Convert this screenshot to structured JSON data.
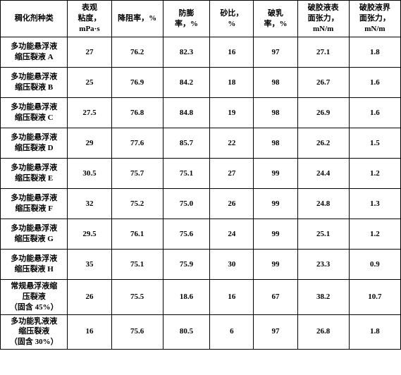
{
  "table": {
    "columns": [
      "稠化剂种类",
      "表观\n粘度，\nmPa·s",
      "降阻率，%",
      "防膨\n率，%",
      "砂比，\n%",
      "破乳\n率，%",
      "破胶液表\n面张力，\nmN/m",
      "破胶液界\n面张力，\nmN/m"
    ],
    "rows": [
      [
        "多功能悬浮液\n缩压裂液 A",
        "27",
        "76.2",
        "82.3",
        "16",
        "97",
        "27.1",
        "1.8"
      ],
      [
        "多功能悬浮液\n缩压裂液 B",
        "25",
        "76.9",
        "84.2",
        "18",
        "98",
        "26.7",
        "1.6"
      ],
      [
        "多功能悬浮液\n缩压裂液 C",
        "27.5",
        "76.8",
        "84.8",
        "19",
        "98",
        "26.9",
        "1.6"
      ],
      [
        "多功能悬浮液\n缩压裂液 D",
        "29",
        "77.6",
        "85.7",
        "22",
        "98",
        "26.2",
        "1.5"
      ],
      [
        "多功能悬浮液\n缩压裂液 E",
        "30.5",
        "75.7",
        "75.1",
        "27",
        "99",
        "24.4",
        "1.2"
      ],
      [
        "多功能悬浮液\n缩压裂液 F",
        "32",
        "75.2",
        "75.0",
        "26",
        "99",
        "24.8",
        "1.3"
      ],
      [
        "多功能悬浮液\n缩压裂液 G",
        "29.5",
        "76.1",
        "75.6",
        "24",
        "99",
        "25.1",
        "1.2"
      ],
      [
        "多功能悬浮液\n缩压裂液 H",
        "35",
        "75.1",
        "75.9",
        "30",
        "99",
        "23.3",
        "0.9"
      ],
      [
        "常规悬浮液缩\n压裂液\n（固含 45%）",
        "26",
        "75.5",
        "18.6",
        "16",
        "67",
        "38.2",
        "10.7"
      ],
      [
        "多功能乳液液\n缩压裂液\n（固含 30%）",
        "16",
        "75.6",
        "80.5",
        "6",
        "97",
        "26.8",
        "1.8"
      ]
    ]
  }
}
